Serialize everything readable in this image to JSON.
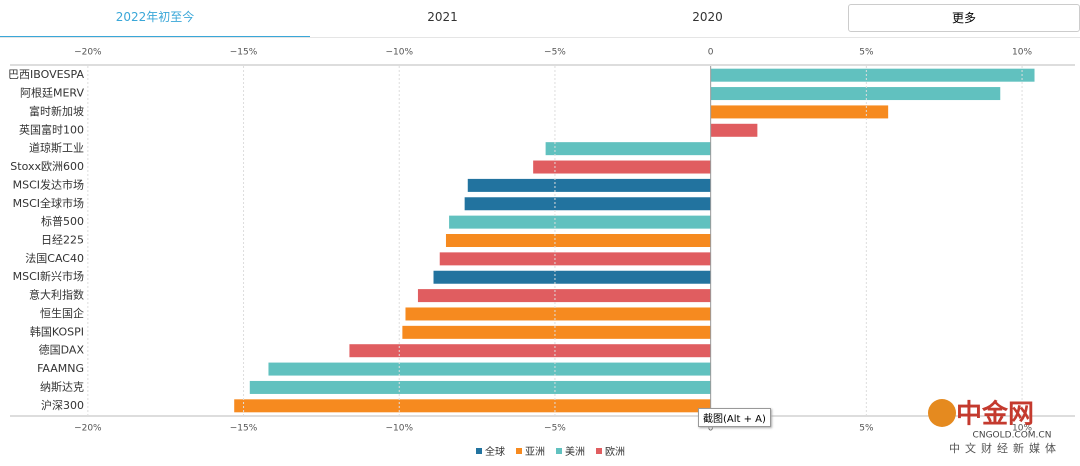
{
  "tabs": [
    "2022年初至今",
    "2021",
    "2020"
  ],
  "more_button": "更多",
  "tooltip": "截图(Alt + A)",
  "watermark": {
    "brand": "中金网",
    "domain": "CNGOLD.COM.CN",
    "slogan": "中文财经新媒体"
  },
  "chart_data": {
    "type": "hbar",
    "categories": [
      "巴西IBOVESPA",
      "阿根廷MERV",
      "富时新加坡",
      "英国富时100",
      "道琼斯工业",
      "Stoxx欧洲600",
      "MSCI发达市场",
      "MSCI全球市场",
      "标普500",
      "日经225",
      "法国CAC40",
      "MSCI新兴市场",
      "意大利指数",
      "恒生国企",
      "韩国KOSPI",
      "德国DAX",
      "FAAMNG",
      "纳斯达克",
      "沪深300"
    ],
    "series": [
      {
        "name": "全球",
        "color": "#22739f",
        "values": [
          null,
          null,
          null,
          null,
          null,
          null,
          -7.8,
          -7.9,
          null,
          null,
          null,
          -8.9,
          null,
          null,
          null,
          null,
          null,
          null,
          null
        ]
      },
      {
        "name": "亚洲",
        "color": "#f68a1f",
        "values": [
          null,
          null,
          5.7,
          null,
          null,
          null,
          null,
          null,
          null,
          -8.5,
          null,
          null,
          null,
          -9.8,
          -9.9,
          null,
          null,
          null,
          -15.3
        ]
      },
      {
        "name": "美洲",
        "color": "#61c1bf",
        "values": [
          10.4,
          9.3,
          null,
          null,
          -5.3,
          null,
          null,
          null,
          -8.4,
          null,
          null,
          null,
          null,
          null,
          null,
          null,
          -14.2,
          -14.8,
          null
        ]
      },
      {
        "name": "欧洲",
        "color": "#e05d60",
        "values": [
          null,
          null,
          null,
          1.5,
          null,
          -5.7,
          null,
          null,
          null,
          null,
          -8.7,
          null,
          -9.4,
          null,
          null,
          -11.6,
          null,
          null,
          null
        ]
      }
    ],
    "xlim": [
      -22.5,
      11.7
    ],
    "xticks": [
      {
        "value": -20,
        "label": "−20%"
      },
      {
        "value": -15,
        "label": "−15%"
      },
      {
        "value": -10,
        "label": "−10%"
      },
      {
        "value": -5,
        "label": "−5%"
      },
      0,
      {
        "value": 5,
        "label": "5%"
      },
      {
        "value": 10,
        "label": "10%"
      }
    ],
    "grid": true
  }
}
